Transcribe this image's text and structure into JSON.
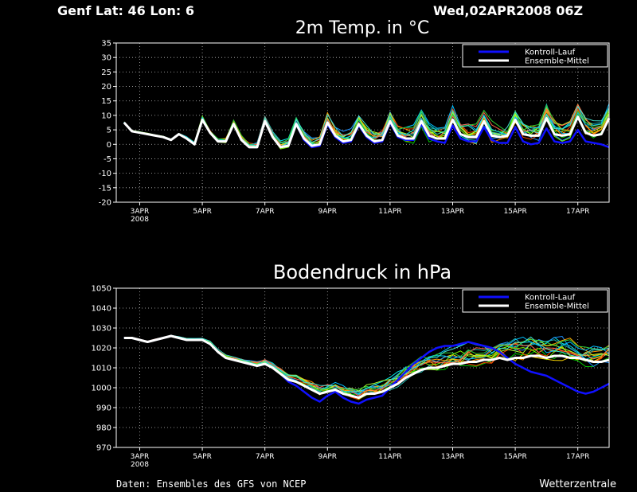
{
  "header": {
    "location": "Genf   Lat: 46  Lon: 6",
    "run": "Wed,02APR2008 06Z"
  },
  "footer": {
    "source": "Daten: Ensembles des GFS von NCEP",
    "brand": "Wetterzentrale"
  },
  "colors": {
    "background": "#000000",
    "axes": "#ffffff",
    "grid": "#bbbbbb",
    "control": "#1010ff",
    "mean": "#ffffff",
    "members": [
      "#ff8c00",
      "#ffd700",
      "#00c800",
      "#00e5e5",
      "#1e90ff",
      "#ff4500",
      "#7cfc00",
      "#20b2aa",
      "#ffa500",
      "#adff2f",
      "#00bfff",
      "#ff6347",
      "#32cd32",
      "#40e0d0"
    ]
  },
  "chart_data": [
    {
      "type": "line",
      "title": "2m Temp. in °C",
      "x_tick_labels": [
        "3APR",
        "5APR",
        "7APR",
        "9APR",
        "11APR",
        "13APR",
        "15APR",
        "17APR"
      ],
      "x_tick_sublabel": "2008",
      "x_tick_days": [
        3,
        5,
        7,
        9,
        11,
        13,
        15,
        17
      ],
      "xlim": [
        2.25,
        18.0
      ],
      "ylim": [
        -20,
        35
      ],
      "yticks": [
        -20,
        -15,
        -10,
        -5,
        0,
        5,
        10,
        15,
        20,
        25,
        30,
        35
      ],
      "grid": true,
      "legend_position": "top-right",
      "legend": [
        "Kontroll-Lauf",
        "Ensemble-Mittel"
      ],
      "x": [
        2.5,
        2.75,
        3,
        3.25,
        3.5,
        3.75,
        4,
        4.25,
        4.5,
        4.75,
        5,
        5.25,
        5.5,
        5.75,
        6,
        6.25,
        6.5,
        6.75,
        7,
        7.25,
        7.5,
        7.75,
        8,
        8.25,
        8.5,
        8.75,
        9,
        9.25,
        9.5,
        9.75,
        10,
        10.25,
        10.5,
        10.75,
        11,
        11.25,
        11.5,
        11.75,
        12,
        12.25,
        12.5,
        12.75,
        13,
        13.25,
        13.5,
        13.75,
        14,
        14.25,
        14.5,
        14.75,
        15,
        15.25,
        15.5,
        15.75,
        16,
        16.25,
        16.5,
        16.75,
        17,
        17.25,
        17.5,
        17.75,
        18
      ],
      "series": [
        {
          "name": "Ensemble-Mittel",
          "values": [
            7.5,
            4.5,
            4,
            3.5,
            3,
            2.5,
            1.5,
            3.5,
            2,
            0,
            8.5,
            4,
            1,
            1,
            7,
            1.5,
            -1,
            -1,
            8,
            2.5,
            -1,
            -0.5,
            7,
            2,
            -0.5,
            0,
            7.5,
            3,
            1,
            1.5,
            7,
            3,
            1,
            1.5,
            8,
            3,
            2,
            2,
            8,
            3,
            2,
            2,
            8.5,
            3.5,
            2.5,
            2.5,
            8,
            3,
            2.5,
            3,
            8.5,
            3.5,
            3,
            3,
            9,
            3.5,
            3,
            3.5,
            9.5,
            4,
            3,
            3.5,
            9
          ]
        },
        {
          "name": "Kontroll-Lauf",
          "values": [
            7.5,
            4.5,
            4,
            3.5,
            3,
            2.5,
            1.5,
            3.5,
            2,
            0,
            8.5,
            4,
            1,
            1,
            7,
            1.5,
            -1,
            -1,
            8,
            2.5,
            -1,
            -0.5,
            7,
            1.5,
            -1,
            -0.5,
            7,
            2.5,
            0.5,
            1,
            6.5,
            2.5,
            0.5,
            1,
            7.5,
            2.5,
            1.5,
            1.5,
            7,
            2,
            1,
            0.5,
            6.5,
            2,
            1,
            1,
            6,
            1.5,
            0.5,
            0.5,
            6,
            1,
            0,
            0.5,
            5.5,
            1,
            0.5,
            1,
            5,
            1,
            0.5,
            0,
            -1
          ]
        }
      ],
      "spread": [
        0.5,
        0.5,
        0.5,
        0.5,
        0.5,
        0.5,
        0.5,
        0.5,
        1,
        1,
        1.5,
        1,
        1.5,
        1.5,
        2,
        2,
        2,
        2.5,
        2.5,
        2.5,
        3,
        3,
        3,
        3.5,
        3.5,
        3.5,
        4,
        4,
        4,
        4.5,
        4.5,
        4.5,
        5,
        5,
        5,
        5,
        5.5,
        5.5,
        5.5,
        5.5,
        5.5,
        6,
        6,
        6,
        6,
        6,
        6.5,
        6.5,
        6.5,
        6.5,
        6.5,
        7,
        7,
        7,
        7,
        7,
        7,
        7,
        7,
        7,
        7,
        7,
        7
      ]
    },
    {
      "type": "line",
      "title": "Bodendruck in hPa",
      "x_tick_labels": [
        "3APR",
        "5APR",
        "7APR",
        "9APR",
        "11APR",
        "13APR",
        "15APR",
        "17APR"
      ],
      "x_tick_sublabel": "2008",
      "x_tick_days": [
        3,
        5,
        7,
        9,
        11,
        13,
        15,
        17
      ],
      "xlim": [
        2.25,
        18.0
      ],
      "ylim": [
        970,
        1050
      ],
      "yticks": [
        970,
        980,
        990,
        1000,
        1010,
        1020,
        1030,
        1040,
        1050
      ],
      "grid": true,
      "legend_position": "top-right",
      "legend": [
        "Kontroll-Lauf",
        "Ensemble-Mittel"
      ],
      "x": [
        2.5,
        2.75,
        3,
        3.25,
        3.5,
        3.75,
        4,
        4.25,
        4.5,
        4.75,
        5,
        5.25,
        5.5,
        5.75,
        6,
        6.25,
        6.5,
        6.75,
        7,
        7.25,
        7.5,
        7.75,
        8,
        8.25,
        8.5,
        8.75,
        9,
        9.25,
        9.5,
        9.75,
        10,
        10.25,
        10.5,
        10.75,
        11,
        11.25,
        11.5,
        11.75,
        12,
        12.25,
        12.5,
        12.75,
        13,
        13.25,
        13.5,
        13.75,
        14,
        14.25,
        14.5,
        14.75,
        15,
        15.25,
        15.5,
        15.75,
        16,
        16.25,
        16.5,
        16.75,
        17,
        17.25,
        17.5,
        17.75,
        18
      ],
      "series": [
        {
          "name": "Ensemble-Mittel",
          "values": [
            1025,
            1025,
            1024,
            1023,
            1024,
            1025,
            1026,
            1025,
            1024,
            1024,
            1024,
            1022,
            1018,
            1015,
            1014,
            1013,
            1012,
            1011,
            1012,
            1010,
            1007,
            1004,
            1003,
            1001,
            999,
            997,
            998,
            999,
            997,
            996,
            995,
            997,
            997,
            998,
            1000,
            1002,
            1005,
            1007,
            1009,
            1010,
            1010,
            1011,
            1012,
            1012,
            1013,
            1013,
            1014,
            1014,
            1015,
            1014,
            1015,
            1015,
            1016,
            1016,
            1015,
            1016,
            1016,
            1015,
            1015,
            1014,
            1013,
            1013,
            1014
          ]
        },
        {
          "name": "Kontroll-Lauf",
          "values": [
            1025,
            1025,
            1024,
            1023,
            1024,
            1025,
            1026,
            1025,
            1024,
            1024,
            1024,
            1022,
            1018,
            1015,
            1014,
            1013,
            1012,
            1011,
            1012,
            1010,
            1007,
            1003,
            1001,
            998,
            995,
            993,
            996,
            998,
            995,
            993,
            992,
            994,
            995,
            996,
            1000,
            1004,
            1008,
            1012,
            1015,
            1018,
            1020,
            1021,
            1021,
            1022,
            1023,
            1022,
            1021,
            1020,
            1018,
            1015,
            1012,
            1010,
            1008,
            1007,
            1006,
            1004,
            1002,
            1000,
            998,
            997,
            998,
            1000,
            1002
          ]
        }
      ],
      "spread": [
        0.5,
        0.5,
        0.5,
        0.5,
        0.5,
        0.5,
        0.5,
        1,
        1,
        1,
        1,
        1.5,
        1.5,
        2,
        2,
        2,
        2.5,
        2.5,
        3,
        3,
        3.5,
        3.5,
        4,
        4,
        4.5,
        4.5,
        5,
        5,
        5.5,
        5.5,
        6,
        6,
        6.5,
        6.5,
        7,
        7,
        7.5,
        7.5,
        8,
        8,
        8.5,
        8.5,
        9,
        9,
        9.5,
        9.5,
        10,
        10,
        10,
        10.5,
        10.5,
        11,
        11,
        11,
        11.5,
        11.5,
        12,
        12,
        12,
        12,
        12,
        12,
        12
      ]
    }
  ]
}
